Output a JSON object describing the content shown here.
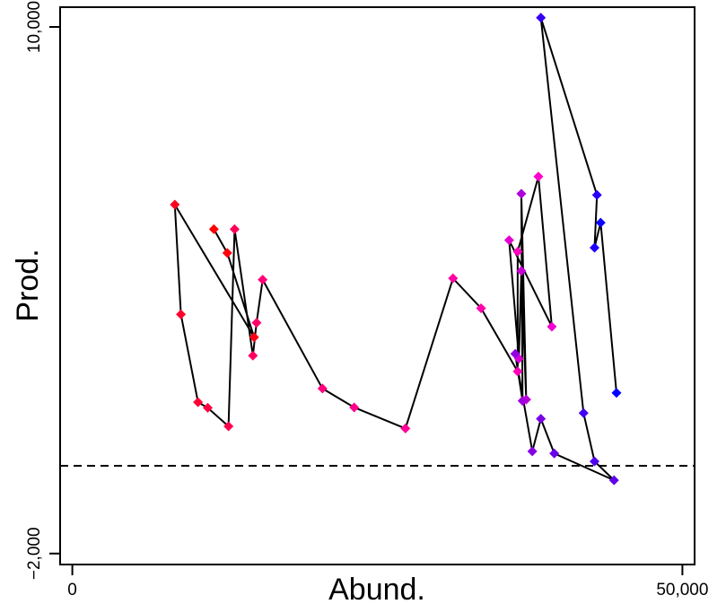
{
  "chart_data": {
    "type": "line",
    "title": "",
    "xlabel": "Abund.",
    "ylabel": "Prod.",
    "xlim": [
      -1000,
      51000
    ],
    "ylim": [
      -2250,
      10450
    ],
    "x_ticks": [
      {
        "value": 0,
        "label": "0"
      },
      {
        "value": 50000,
        "label": "50,000"
      }
    ],
    "y_ticks": [
      {
        "value": -2000,
        "label": "−2,000"
      },
      {
        "value": 10000,
        "label": "10,000"
      }
    ],
    "reference_line": {
      "y": 0,
      "style": "dashed"
    },
    "grid": false,
    "legend": "none",
    "marker": "diamond",
    "color_start": "#ff0000",
    "color_mid": "#ff00cc",
    "color_end": "#0000ff",
    "series": [
      {
        "points": [
          [
            11600,
            5390
          ],
          [
            12700,
            4850
          ],
          [
            14900,
            2930
          ],
          [
            8400,
            5950
          ],
          [
            8900,
            3450
          ],
          [
            10300,
            1450
          ],
          [
            11100,
            1320
          ],
          [
            12800,
            900
          ],
          [
            13300,
            5390
          ],
          [
            14800,
            2510
          ],
          [
            15100,
            3260
          ],
          [
            15600,
            4240
          ],
          [
            20500,
            1760
          ],
          [
            23100,
            1330
          ],
          [
            27300,
            850
          ],
          [
            31200,
            4270
          ],
          [
            33500,
            3590
          ],
          [
            36500,
            2150
          ],
          [
            36500,
            4880
          ],
          [
            38200,
            6590
          ],
          [
            39300,
            3170
          ],
          [
            35800,
            5140
          ],
          [
            36600,
            2440
          ],
          [
            36800,
            4440
          ],
          [
            37200,
            1510
          ],
          [
            36800,
            6200
          ],
          [
            36900,
            1480
          ],
          [
            36300,
            2550
          ],
          [
            37700,
            330
          ],
          [
            38400,
            1070
          ],
          [
            39500,
            280
          ],
          [
            44400,
            -330
          ],
          [
            42800,
            100
          ],
          [
            41900,
            1200
          ],
          [
            38400,
            10210
          ],
          [
            43000,
            6170
          ],
          [
            42800,
            4970
          ],
          [
            43300,
            5540
          ],
          [
            44600,
            1660
          ]
        ]
      }
    ]
  }
}
